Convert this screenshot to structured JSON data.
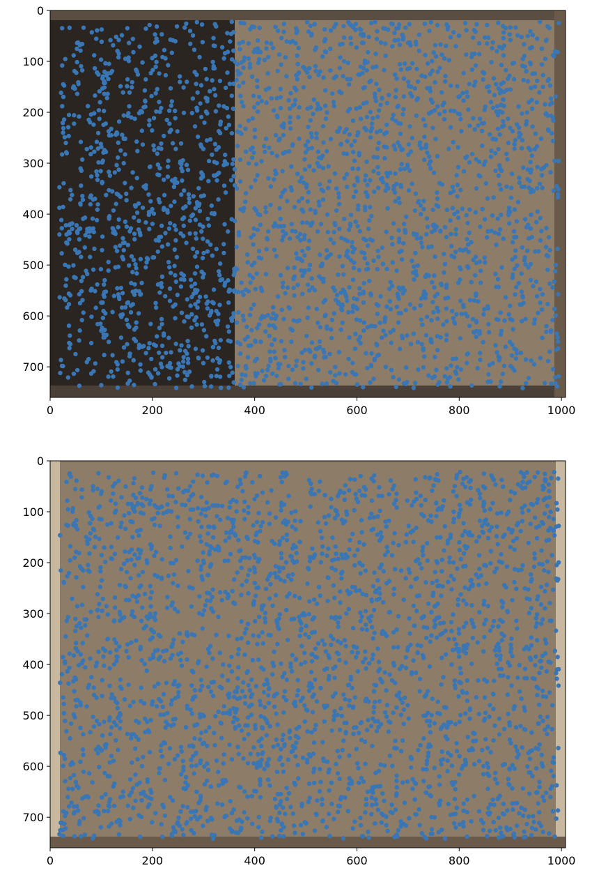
{
  "chart_data": [
    {
      "type": "scatter",
      "title": "",
      "xlabel": "",
      "ylabel": "",
      "xlim": [
        0,
        1008
      ],
      "ylim": [
        760,
        0
      ],
      "y_inverted": true,
      "grid": false,
      "xticks": [
        0,
        200,
        400,
        600,
        800,
        1000
      ],
      "yticks": [
        0,
        100,
        200,
        300,
        400,
        500,
        600,
        700
      ],
      "background": "photo of a workbench scene with dark objects on the left half and a lighter surface on the right",
      "series": [
        {
          "color": "#3a76b4",
          "x_range": [
            18,
            995
          ],
          "y_range": [
            22,
            742
          ],
          "description": "dense keypoint markers covering nearly the entire image"
        }
      ]
    },
    {
      "type": "scatter",
      "title": "",
      "xlabel": "",
      "ylabel": "",
      "xlim": [
        0,
        1008
      ],
      "ylim": [
        760,
        0
      ],
      "y_inverted": true,
      "grid": false,
      "xticks": [
        0,
        200,
        400,
        600,
        800,
        1000
      ],
      "yticks": [
        0,
        100,
        200,
        300,
        400,
        500,
        600,
        700
      ],
      "background": "photo of a table surface with several small objects in the upper right region",
      "series": [
        {
          "color": "#3a76b4",
          "x_range": [
            18,
            995
          ],
          "y_range": [
            22,
            742
          ],
          "description": "dense keypoint markers covering nearly the entire image"
        }
      ]
    }
  ],
  "colors": {
    "marker": "#3a76b4",
    "photo_dark": "#2a2520",
    "photo_mid": "#8d7c67",
    "photo_light": "#c9b8a0"
  }
}
